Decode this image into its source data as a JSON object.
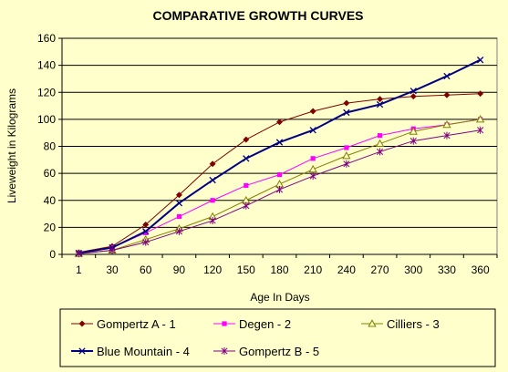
{
  "chart_data": {
    "type": "line",
    "title": "COMPARATIVE GROWTH CURVES",
    "xlabel": "Age In Days",
    "ylabel": "Liveweight in Kilograms",
    "categories": [
      "1",
      "30",
      "60",
      "90",
      "120",
      "150",
      "180",
      "210",
      "240",
      "270",
      "300",
      "330",
      "360"
    ],
    "ylim": [
      0,
      160
    ],
    "yticks": [
      0,
      20,
      40,
      60,
      80,
      100,
      120,
      140,
      160
    ],
    "grid": "horizontal",
    "legend_position": "bottom",
    "series": [
      {
        "name": "Gompertz A - 1",
        "color": "#800000",
        "marker": "diamond",
        "values": [
          1.5,
          6,
          22,
          44,
          67,
          85,
          98,
          106,
          112,
          115,
          117,
          118,
          119
        ]
      },
      {
        "name": "Degen - 2",
        "color": "#ff00ff",
        "marker": "square",
        "values": [
          1,
          5,
          16,
          28,
          40,
          51,
          59,
          71,
          79,
          88,
          93,
          96,
          100
        ]
      },
      {
        "name": "Cilliers - 3",
        "color": "#808000",
        "marker": "triangle",
        "values": [
          0.5,
          3,
          11,
          19,
          28,
          40,
          52,
          63,
          73,
          82,
          91,
          96,
          100
        ]
      },
      {
        "name": "Blue Mountain - 4",
        "color": "#000080",
        "marker": "x",
        "values": [
          1,
          5,
          17,
          38,
          55,
          71,
          83,
          92,
          105,
          111,
          121,
          132,
          144
        ]
      },
      {
        "name": "Gompertz B    - 5",
        "color": "#800080",
        "marker": "star",
        "values": [
          0.5,
          3,
          9,
          17,
          25,
          36,
          48,
          58,
          67,
          76,
          84,
          88,
          92
        ]
      }
    ]
  }
}
